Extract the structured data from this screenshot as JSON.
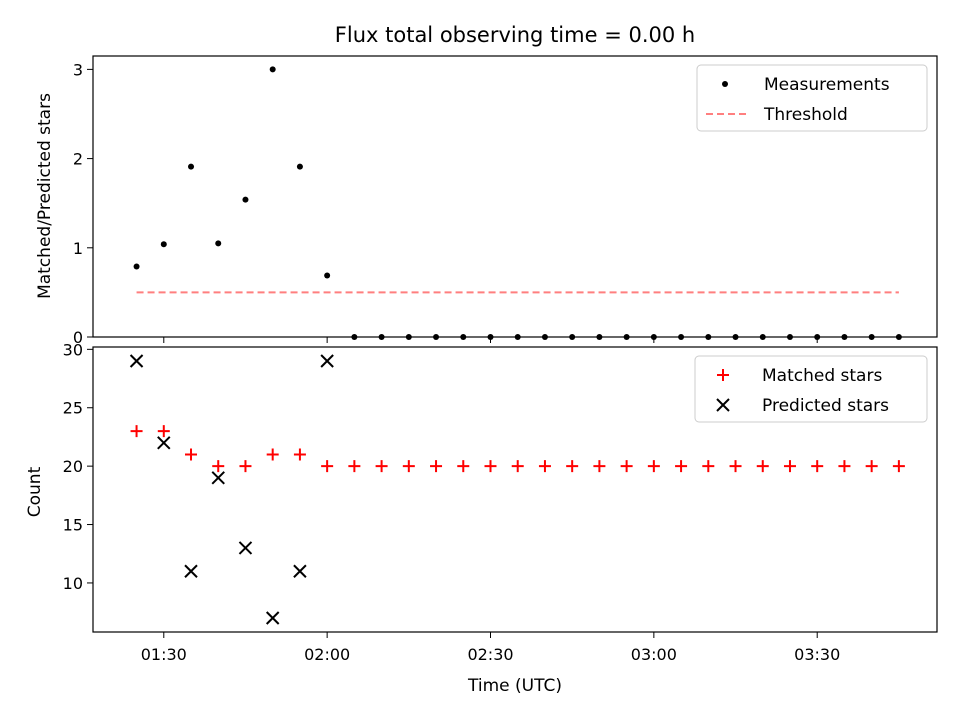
{
  "title": "Flux total observing time = 0.00 h",
  "colors": {
    "measurement": "#000000",
    "threshold": "#ff7f7f",
    "matched": "#ff0000",
    "predicted": "#000000"
  },
  "chart_data": [
    {
      "type": "scatter",
      "ylabel": "Matched/Predicted stars",
      "xlim": [
        "01:17",
        "03:52"
      ],
      "ylim": [
        0,
        3.15
      ],
      "yticks": [
        0,
        1,
        2,
        3
      ],
      "legend_position": "top-right",
      "series": [
        {
          "name": "Measurements",
          "kind": "scatter",
          "x": [
            "01:25",
            "01:30",
            "01:35",
            "01:40",
            "01:45",
            "01:50",
            "01:55",
            "02:00",
            "02:05",
            "02:10",
            "02:15",
            "02:20",
            "02:25",
            "02:30",
            "02:35",
            "02:40",
            "02:45",
            "02:50",
            "02:55",
            "03:00",
            "03:05",
            "03:10",
            "03:15",
            "03:20",
            "03:25",
            "03:30",
            "03:35",
            "03:40",
            "03:45"
          ],
          "y": [
            0.79,
            1.04,
            1.91,
            1.05,
            1.54,
            3.0,
            1.91,
            0.69,
            0,
            0,
            0,
            0,
            0,
            0,
            0,
            0,
            0,
            0,
            0,
            0,
            0,
            0,
            0,
            0,
            0,
            0,
            0,
            0,
            0
          ]
        },
        {
          "name": "Threshold",
          "kind": "dashed-line",
          "x": [
            "01:25",
            "03:45"
          ],
          "y": [
            0.5,
            0.5
          ]
        }
      ]
    },
    {
      "type": "scatter",
      "ylabel": "Count",
      "xlabel": "Time (UTC)",
      "xlim": [
        "01:17",
        "03:52"
      ],
      "ylim": [
        5.8,
        30.2
      ],
      "yticks": [
        10,
        15,
        20,
        25,
        30
      ],
      "xticks": [
        "01:30",
        "02:00",
        "02:30",
        "03:00",
        "03:30"
      ],
      "legend_position": "top-right",
      "series": [
        {
          "name": "Matched stars",
          "kind": "plus",
          "x": [
            "01:25",
            "01:30",
            "01:35",
            "01:40",
            "01:45",
            "01:50",
            "01:55",
            "02:00",
            "02:05",
            "02:10",
            "02:15",
            "02:20",
            "02:25",
            "02:30",
            "02:35",
            "02:40",
            "02:45",
            "02:50",
            "02:55",
            "03:00",
            "03:05",
            "03:10",
            "03:15",
            "03:20",
            "03:25",
            "03:30",
            "03:35",
            "03:40",
            "03:45"
          ],
          "y": [
            23,
            23,
            21,
            20,
            20,
            21,
            21,
            20,
            20,
            20,
            20,
            20,
            20,
            20,
            20,
            20,
            20,
            20,
            20,
            20,
            20,
            20,
            20,
            20,
            20,
            20,
            20,
            20,
            20
          ]
        },
        {
          "name": "Predicted stars",
          "kind": "x",
          "x": [
            "01:25",
            "01:30",
            "01:35",
            "01:40",
            "01:45",
            "01:50",
            "01:55",
            "02:00"
          ],
          "y": [
            29,
            22,
            11,
            19,
            13,
            7,
            11,
            29
          ]
        }
      ]
    }
  ]
}
